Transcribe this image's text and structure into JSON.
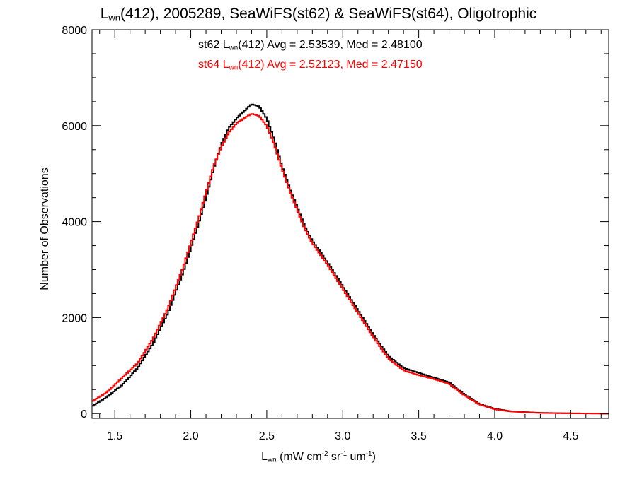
{
  "chart_data": {
    "type": "line",
    "title": {
      "prefix": "L",
      "sub": "wn",
      "rest": "(412), 2005289, SeaWiFS(st62) & SeaWiFS(st64), Oligotrophic"
    },
    "xlabel": {
      "prefix": "L",
      "sub": "wn",
      "a": " (mW cm",
      "sup1": "-2",
      "b": " sr",
      "sup2": "-1",
      "c": " um",
      "sup3": "-1",
      "d": ")"
    },
    "ylabel": "Number of Observations",
    "xlim": [
      1.35,
      4.75
    ],
    "ylim": [
      -100,
      8000
    ],
    "x_ticks": [
      "1.5",
      "2.0",
      "2.5",
      "3.0",
      "3.5",
      "4.0",
      "4.5"
    ],
    "y_ticks": [
      "0",
      "2000",
      "4000",
      "6000",
      "8000"
    ],
    "annotations": [
      {
        "pre": "st62 L",
        "sub": "wn",
        "post": "(412) Avg = 2.53539, Med = 2.48100",
        "color": "#000000"
      },
      {
        "pre": "st64 L",
        "sub": "wn",
        "post": "(412) Avg = 2.52123, Med = 2.47150",
        "color": "#ff0000"
      }
    ],
    "series": [
      {
        "name": "st62",
        "color": "#000000",
        "x": [
          1.35,
          1.45,
          1.55,
          1.65,
          1.75,
          1.85,
          1.95,
          2.0,
          2.05,
          2.1,
          2.15,
          2.2,
          2.25,
          2.3,
          2.35,
          2.4,
          2.45,
          2.5,
          2.55,
          2.6,
          2.65,
          2.7,
          2.75,
          2.8,
          2.9,
          3.0,
          3.1,
          3.2,
          3.3,
          3.4,
          3.5,
          3.6,
          3.7,
          3.8,
          3.9,
          4.0,
          4.1,
          4.2,
          4.3,
          4.4,
          4.5,
          4.6,
          4.75
        ],
        "y": [
          150,
          350,
          600,
          950,
          1450,
          2100,
          2950,
          3450,
          3950,
          4500,
          5100,
          5600,
          5950,
          6150,
          6300,
          6450,
          6400,
          6150,
          5700,
          5150,
          4700,
          4300,
          3900,
          3600,
          3150,
          2650,
          2150,
          1650,
          1200,
          950,
          850,
          750,
          650,
          400,
          200,
          100,
          50,
          30,
          15,
          10,
          5,
          3,
          0
        ]
      },
      {
        "name": "st64",
        "color": "#ff0000",
        "x": [
          1.35,
          1.45,
          1.55,
          1.65,
          1.75,
          1.85,
          1.95,
          2.0,
          2.05,
          2.1,
          2.15,
          2.2,
          2.25,
          2.3,
          2.35,
          2.4,
          2.45,
          2.5,
          2.55,
          2.6,
          2.65,
          2.7,
          2.75,
          2.8,
          2.9,
          3.0,
          3.1,
          3.2,
          3.3,
          3.4,
          3.5,
          3.6,
          3.7,
          3.8,
          3.9,
          4.0,
          4.1,
          4.2,
          4.3,
          4.4,
          4.5,
          4.6,
          4.75
        ],
        "y": [
          250,
          450,
          750,
          1050,
          1550,
          2200,
          3050,
          3550,
          4050,
          4600,
          5150,
          5550,
          5850,
          6050,
          6150,
          6250,
          6200,
          6000,
          5600,
          5100,
          4650,
          4250,
          3850,
          3550,
          3100,
          2600,
          2100,
          1600,
          1150,
          900,
          800,
          720,
          620,
          380,
          190,
          90,
          45,
          25,
          12,
          8,
          4,
          2,
          0
        ]
      }
    ]
  }
}
